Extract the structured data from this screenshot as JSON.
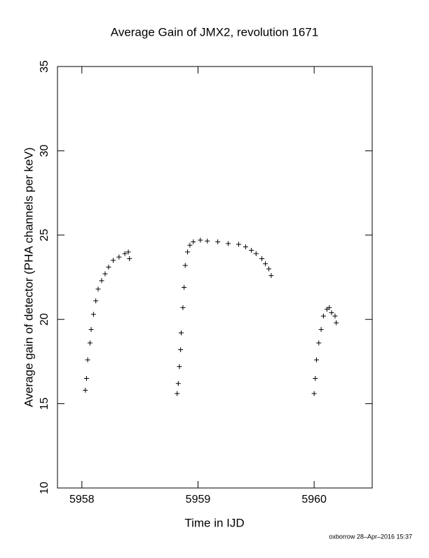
{
  "chart_data": {
    "type": "scatter",
    "title": "Average Gain of JMX2, revolution 1671",
    "xlabel": "Time in IJD",
    "ylabel": "Average gain of detector (PHA channels per keV)",
    "footer": "oxborrow 28–Apr–2016 15:37",
    "color": "#000000",
    "xlim": [
      5957.79,
      5960.5
    ],
    "xticks": [
      5958,
      5959,
      5960
    ],
    "ylim": [
      10,
      35
    ],
    "yticks": [
      10,
      15,
      20,
      25,
      30,
      35
    ],
    "x": [
      5958.03,
      5958.04,
      5958.05,
      5958.07,
      5958.08,
      5958.1,
      5958.12,
      5958.14,
      5958.17,
      5958.2,
      5958.23,
      5958.27,
      5958.32,
      5958.37,
      5958.4,
      5958.41,
      5958.82,
      5958.83,
      5958.84,
      5958.85,
      5958.855,
      5958.87,
      5958.88,
      5958.89,
      5958.91,
      5958.93,
      5958.96,
      5959.02,
      5959.08,
      5959.17,
      5959.26,
      5959.35,
      5959.41,
      5959.46,
      5959.5,
      5959.55,
      5959.58,
      5959.61,
      5959.63,
      5960.0,
      5960.01,
      5960.02,
      5960.04,
      5960.06,
      5960.08,
      5960.11,
      5960.13,
      5960.15,
      5960.18,
      5960.19
    ],
    "values": [
      15.8,
      16.5,
      17.6,
      18.6,
      19.4,
      20.3,
      21.1,
      21.8,
      22.3,
      22.7,
      23.1,
      23.5,
      23.7,
      23.9,
      24.0,
      23.6,
      15.6,
      16.2,
      17.2,
      18.2,
      19.2,
      20.7,
      21.9,
      23.2,
      24.0,
      24.4,
      24.6,
      24.7,
      24.65,
      24.6,
      24.5,
      24.45,
      24.3,
      24.1,
      23.9,
      23.6,
      23.3,
      23.0,
      22.6,
      15.6,
      16.5,
      17.6,
      18.6,
      19.4,
      20.2,
      20.6,
      20.7,
      20.4,
      20.2,
      19.8
    ]
  }
}
